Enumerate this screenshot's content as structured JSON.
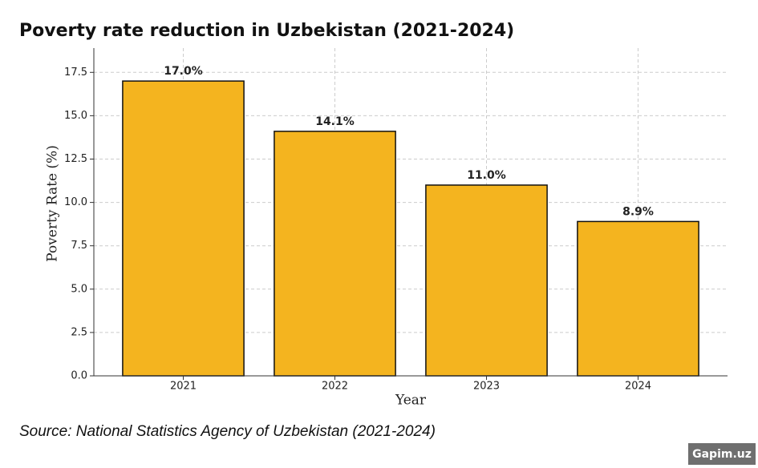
{
  "chart_data": {
    "type": "bar",
    "title": "Poverty rate reduction in Uzbekistan (2021-2024)",
    "x_label": "Year",
    "y_label": "Poverty Rate (%)",
    "categories": [
      "2021",
      "2022",
      "2023",
      "2024"
    ],
    "values": [
      17.0,
      14.1,
      11.0,
      8.9
    ],
    "value_labels": [
      "17.0%",
      "14.1%",
      "11.0%",
      "8.9%"
    ],
    "color": "#f4b41f",
    "ylim": [
      0,
      18.9
    ],
    "yticks": [
      {
        "value": 0,
        "label": "0.0"
      },
      2.5,
      {
        "value": 5,
        "label": "5.0"
      },
      7.5,
      {
        "value": 10,
        "label": "10.0"
      },
      12.5,
      {
        "value": 15,
        "label": "15.0"
      },
      17.5
    ],
    "grid": true,
    "source": "Source: National Statistics Agency of Uzbekistan (2021-2024)",
    "watermark": "Gapim.uz"
  }
}
